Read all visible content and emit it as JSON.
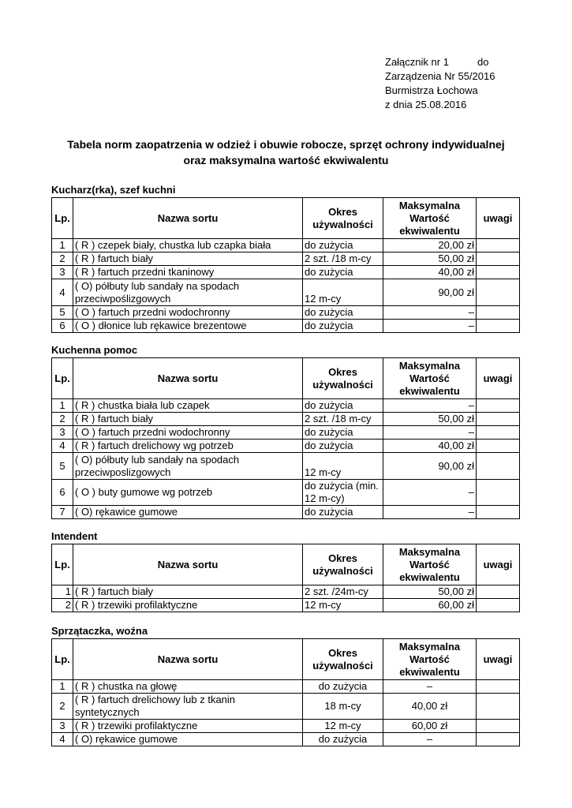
{
  "header": {
    "line1": "Załącznik nr 1          do",
    "line2": "Zarządzenia Nr 55/2016",
    "line3": "Burmistrza Łochowa",
    "line4": "z dnia 25.08.2016"
  },
  "title": {
    "line1": "Tabela norm zaopatrzenia w odzież i obuwie robocze, sprzęt ochrony indywidualnej",
    "line2": "oraz maksymalna wartość ekwiwalentu"
  },
  "columns": {
    "lp": "Lp.",
    "name": "Nazwa sortu",
    "period": "Okres używalności",
    "max": "Maksymalna Wartość ekwiwalentu",
    "notes": "uwagi"
  },
  "sections": [
    {
      "title": "Kucharz(rka), szef kuchni",
      "rows": [
        [
          "1",
          "( R )  czepek biały, chustka lub czapka biała",
          "do zużycia",
          "20,00 zł",
          ""
        ],
        [
          "2",
          "( R )  fartuch biały",
          "2 szt. /18 m-cy",
          "50,00 zł",
          ""
        ],
        [
          "3",
          "( R )  fartuch przedni tkaninowy",
          "do zużycia",
          "40,00 zł",
          ""
        ],
        [
          "4",
          "( O) półbuty lub sandały na spodach przeciwpoślizgowych",
          "12 m-cy",
          "90,00 zł",
          ""
        ],
        [
          "5",
          "( O )  fartuch przedni wodochronny",
          "do zużycia",
          "–",
          ""
        ],
        [
          "6",
          "( O ) dłonice lub rękawice brezentowe",
          "do zużycia",
          "–",
          ""
        ]
      ]
    },
    {
      "title": "Kuchenna pomoc",
      "rows": [
        [
          "1",
          "( R )  chustka biała lub czapek",
          "do zużycia",
          "–",
          ""
        ],
        [
          "2",
          "( R )  fartuch biały",
          "2 szt. /18 m-cy",
          "50,00 zł",
          ""
        ],
        [
          "3",
          "( O )  fartuch przedni wodochronny",
          "do zużycia",
          "–",
          ""
        ],
        [
          "4",
          "( R )  fartuch drelichowy wg potrzeb",
          "do zużycia",
          "40,00 zł",
          ""
        ],
        [
          "5",
          "( O) półbuty lub sandały na spodach przeciwposlizgowych",
          "12 m-cy",
          "90,00 zł",
          ""
        ],
        [
          "6",
          "( O ) buty gumowe wg potrzeb",
          "do zużycia (min. 12 m-cy)",
          "–",
          ""
        ],
        [
          "7",
          "( O)  rękawice gumowe",
          "do zużycia",
          "–",
          ""
        ]
      ]
    },
    {
      "title": "Intendent",
      "rows": [
        [
          "1",
          "( R )  fartuch biały",
          "2 szt. /24m-cy",
          "50,00 zł",
          ""
        ],
        [
          "2",
          "( R )  trzewiki profilaktyczne",
          "12 m-cy",
          "60,00 zł",
          ""
        ]
      ]
    },
    {
      "title": "Sprzątaczka, woźna",
      "rows": [
        [
          "1",
          "( R ) chustka na głowę",
          "do zużycia",
          "–",
          ""
        ],
        [
          "2",
          "( R ) fartuch drelichowy lub z tkanin syntetycznych",
          "18 m-cy",
          "40,00 zł",
          ""
        ],
        [
          "3",
          "( R ) trzewiki profilaktyczne",
          "12 m-cy",
          "60,00 zł",
          ""
        ],
        [
          "4",
          "( O)  rękawice gumowe",
          "do zużycia",
          "–",
          ""
        ]
      ]
    }
  ]
}
